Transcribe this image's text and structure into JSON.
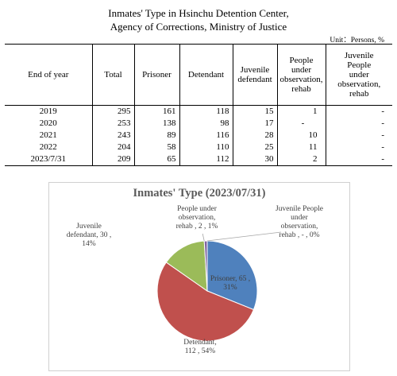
{
  "header": {
    "title_line1": "Inmates' Type in Hsinchu  Detention Center,",
    "title_line2": "Agency of Corrections, Ministry of Justice",
    "unit": "Unit：Persons, %"
  },
  "table": {
    "columns": [
      [
        "End of year"
      ],
      [
        "Total"
      ],
      [
        "Prisoner"
      ],
      [
        "Detendant"
      ],
      [
        "Juvenile",
        "defendant"
      ],
      [
        "People",
        "under",
        "observation,",
        "rehab"
      ],
      [
        "Juvenile",
        "People",
        "under",
        "observation,",
        "rehab"
      ]
    ],
    "rows": [
      [
        "2019",
        "295",
        "161",
        "118",
        "15",
        "1",
        "-"
      ],
      [
        "2020",
        "253",
        "138",
        "98",
        "17",
        "-",
        "-"
      ],
      [
        "2021",
        "243",
        "89",
        "116",
        "28",
        "10",
        "-"
      ],
      [
        "2022",
        "204",
        "58",
        "110",
        "25",
        "11",
        "-"
      ],
      [
        "2023/7/31",
        "209",
        "65",
        "112",
        "30",
        "2",
        "-"
      ]
    ]
  },
  "chart_data": {
    "type": "pie",
    "title": "Inmates' Type (2023/07/31)",
    "slices": [
      {
        "name": "Prisoner",
        "value": 65,
        "percent": 31,
        "label_lines": [
          "Prisoner,  65 ,",
          "31%"
        ],
        "color": "#4F81BD"
      },
      {
        "name": "Detendant",
        "value": 112,
        "percent": 54,
        "label_lines": [
          "Detendant,",
          "112 , 54%"
        ],
        "color": "#C0504D"
      },
      {
        "name": "Juvenile defendant",
        "value": 30,
        "percent": 14,
        "label_lines": [
          "Juvenile",
          "defendant,  30 ,",
          "14%"
        ],
        "color": "#9BBB59"
      },
      {
        "name": "People under observation, rehab",
        "value": 2,
        "percent": 1,
        "label_lines": [
          "People under",
          "observation,",
          "rehab ,  2 , 1%"
        ],
        "color": "#8064A2"
      },
      {
        "name": "Juvenile People under observation, rehab",
        "value": 0,
        "percent": 0,
        "label_lines": [
          "Juvenile People",
          "under",
          "observation,",
          "rehab ,  -  , 0%"
        ],
        "color": "#4BACC6"
      }
    ]
  }
}
